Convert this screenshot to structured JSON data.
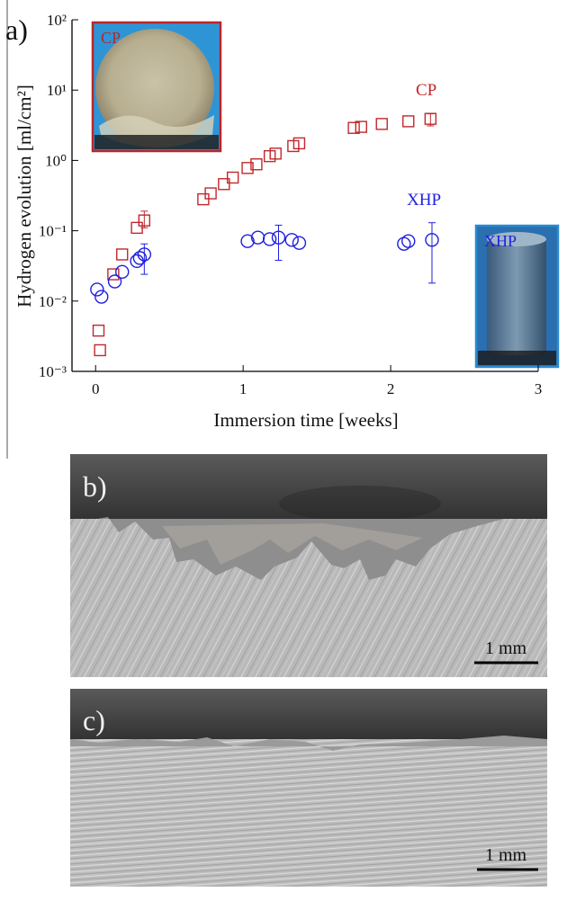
{
  "chart_data": {
    "type": "scatter",
    "panel_label": "a)",
    "x_label": "Immersion time [weeks]",
    "y_label": "Hydrogen evolution [ml/cm²]",
    "xlim": [
      -0.16,
      3
    ],
    "xticks": [
      0,
      1,
      2,
      3
    ],
    "ylim": [
      0.001,
      100
    ],
    "log_y": true,
    "yticks": [
      {
        "value": 0.001,
        "label": "10⁻³"
      },
      {
        "value": 0.01,
        "label": "10⁻²"
      },
      {
        "value": 0.1,
        "label": "10⁻¹"
      },
      {
        "value": 1,
        "label": "10⁰"
      },
      {
        "value": 10,
        "label": "10¹"
      },
      {
        "value": 100,
        "label": "10²"
      }
    ],
    "series": [
      {
        "name": "CP",
        "color": "#c0282d",
        "marker": "square",
        "x": [
          0.02,
          0.03,
          0.12,
          0.18,
          0.28,
          0.33,
          0.73,
          0.78,
          0.87,
          0.93,
          1.03,
          1.09,
          1.18,
          1.22,
          1.34,
          1.38,
          1.75,
          1.8,
          1.94,
          2.12,
          2.27
        ],
        "values": [
          0.0038,
          0.002,
          0.024,
          0.046,
          0.11,
          0.14,
          0.28,
          0.34,
          0.46,
          0.57,
          0.78,
          0.88,
          1.15,
          1.25,
          1.6,
          1.75,
          2.9,
          3.0,
          3.3,
          3.6,
          3.9
        ],
        "err_low": [
          null,
          null,
          null,
          null,
          null,
          0.11,
          null,
          null,
          null,
          null,
          null,
          null,
          null,
          null,
          null,
          null,
          null,
          null,
          null,
          null,
          3.1
        ],
        "err_high": [
          null,
          null,
          null,
          null,
          null,
          0.19,
          null,
          null,
          null,
          null,
          null,
          null,
          null,
          null,
          null,
          null,
          null,
          null,
          null,
          null,
          4.6
        ]
      },
      {
        "name": "XHP",
        "color": "#1f1fe0",
        "marker": "circle",
        "x": [
          0.01,
          0.04,
          0.13,
          0.18,
          0.28,
          0.3,
          0.33,
          1.03,
          1.1,
          1.18,
          1.24,
          1.33,
          1.38,
          2.09,
          2.12,
          2.28
        ],
        "values": [
          0.0146,
          0.0115,
          0.019,
          0.026,
          0.037,
          0.041,
          0.046,
          0.071,
          0.08,
          0.076,
          0.08,
          0.074,
          0.067,
          0.065,
          0.071,
          0.074
        ],
        "err_low": [
          null,
          null,
          null,
          null,
          null,
          null,
          0.024,
          null,
          null,
          null,
          0.038,
          null,
          null,
          null,
          null,
          0.018
        ],
        "err_high": [
          null,
          null,
          null,
          null,
          null,
          null,
          0.065,
          null,
          null,
          null,
          0.12,
          null,
          null,
          null,
          null,
          0.13
        ]
      }
    ]
  },
  "panels": [
    {
      "label": "b)",
      "scale_bar": "1 mm"
    },
    {
      "label": "c)",
      "scale_bar": "1 mm"
    }
  ]
}
